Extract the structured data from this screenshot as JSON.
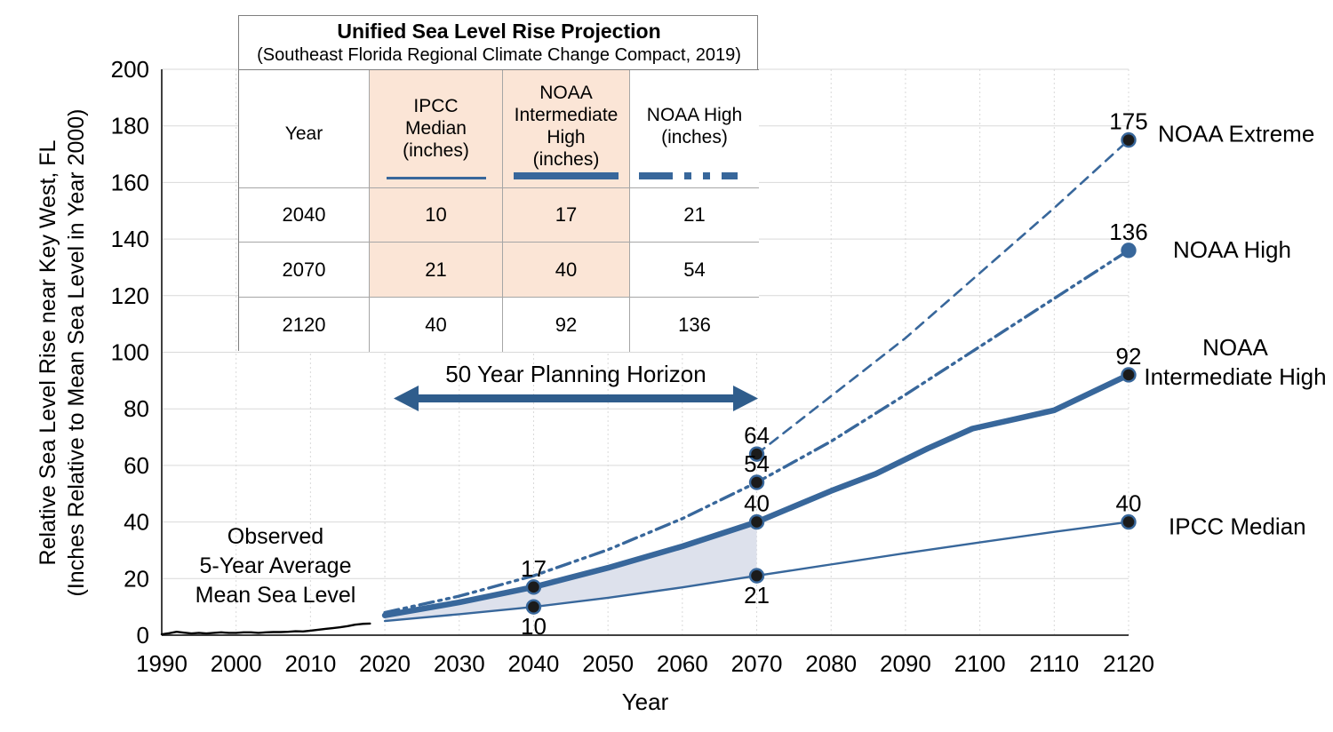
{
  "colors": {
    "line_blue": "#38679B",
    "arrow_blue": "#2F5D8C",
    "band_fill": "#DDE1EC",
    "peach_fill": "#FBE5D6",
    "gridline": "#D9D9D9",
    "axis_line": "#404040",
    "marker_dark": "#1B1B1B",
    "observed_black": "#000000"
  },
  "table": {
    "title": "Unified Sea Level Rise Projection",
    "subtitle": "(Southeast Florida Regional Climate Change Compact, 2019)",
    "headers": {
      "year": "Year",
      "ipcc": "IPCC\nMedian\n(inches)",
      "int_high": "NOAA\nIntermediate\nHigh\n(inches)",
      "high": "NOAA High\n(inches)"
    },
    "rows": [
      [
        "2040",
        "10",
        "17",
        "21"
      ],
      [
        "2070",
        "21",
        "40",
        "54"
      ],
      [
        "2120",
        "40",
        "92",
        "136"
      ]
    ]
  },
  "annotations": {
    "observed": "Observed\n5-Year Average\nMean Sea Level",
    "planning_horizon": "50 Year Planning Horizon"
  },
  "chart_data": {
    "type": "line",
    "xlabel": "Year",
    "ylabel_line1": "Relative Sea Level Rise near Key West, FL",
    "ylabel_line2": "(Inches Relative to Mean Sea Level in Year 2000)",
    "xlim": [
      1990,
      2120
    ],
    "ylim": [
      0,
      200
    ],
    "grid": true,
    "x_ticks": [
      "1990",
      "2000",
      "2010",
      "2020",
      "2030",
      "2040",
      "2050",
      "2060",
      "2070",
      "2080",
      "2090",
      "2100",
      "2110",
      "2120"
    ],
    "y_ticks": [
      "0",
      "20",
      "40",
      "60",
      "80",
      "100",
      "120",
      "140",
      "160",
      "180",
      "200"
    ],
    "band": {
      "upper": "noaa-int-high",
      "lower": "ipcc-median",
      "from": 2020,
      "to": 2070
    },
    "series": [
      {
        "id": "observed",
        "name": "Observed 5-Year Average Mean Sea Level",
        "color": "#000000",
        "width": 2.4,
        "dash": "",
        "points": [
          [
            1990,
            0.3
          ],
          [
            1991,
            0.7
          ],
          [
            1992,
            1.2
          ],
          [
            1993,
            0.9
          ],
          [
            1994,
            0.6
          ],
          [
            1995,
            0.8
          ],
          [
            1996,
            0.6
          ],
          [
            1997,
            0.8
          ],
          [
            1998,
            1.0
          ],
          [
            1999,
            0.8
          ],
          [
            2000,
            0.8
          ],
          [
            2001,
            1.0
          ],
          [
            2002,
            1.0
          ],
          [
            2003,
            0.8
          ],
          [
            2004,
            1.0
          ],
          [
            2005,
            1.1
          ],
          [
            2006,
            1.1
          ],
          [
            2007,
            1.2
          ],
          [
            2008,
            1.4
          ],
          [
            2009,
            1.3
          ],
          [
            2010,
            1.6
          ],
          [
            2011,
            1.9
          ],
          [
            2012,
            2.2
          ],
          [
            2013,
            2.5
          ],
          [
            2014,
            2.8
          ],
          [
            2015,
            3.2
          ],
          [
            2016,
            3.7
          ],
          [
            2017,
            4.0
          ],
          [
            2018,
            4.1
          ]
        ]
      },
      {
        "id": "ipcc-median",
        "name": "IPCC Median",
        "color": "#38679B",
        "width": 2.4,
        "dash": "",
        "points": [
          [
            2020,
            5
          ],
          [
            2030,
            7.4
          ],
          [
            2040,
            10
          ],
          [
            2050,
            13.2
          ],
          [
            2060,
            16.9
          ],
          [
            2070,
            21
          ],
          [
            2080,
            25
          ],
          [
            2090,
            29
          ],
          [
            2100,
            32.8
          ],
          [
            2110,
            36.5
          ],
          [
            2120,
            40
          ]
        ],
        "point_labels": [
          {
            "year": 2040,
            "value": 10,
            "text": "10",
            "pos": "below"
          },
          {
            "year": 2070,
            "value": 21,
            "text": "21",
            "pos": "below"
          },
          {
            "year": 2120,
            "value": 40,
            "text": "40",
            "pos": "above"
          }
        ],
        "end_label": {
          "lines": [
            "IPCC Median"
          ],
          "anchor": "start",
          "dx": 45,
          "dy": 14
        }
      },
      {
        "id": "noaa-int-high",
        "name": "NOAA Intermediate High",
        "color": "#38679B",
        "width": 6.5,
        "dash": "",
        "points": [
          [
            2020,
            7
          ],
          [
            2030,
            11.6
          ],
          [
            2040,
            17
          ],
          [
            2050,
            23.8
          ],
          [
            2060,
            31.4
          ],
          [
            2070,
            40
          ],
          [
            2080,
            51
          ],
          [
            2086,
            57
          ],
          [
            2093,
            66
          ],
          [
            2099,
            73
          ],
          [
            2105,
            76.5
          ],
          [
            2110,
            79.5
          ],
          [
            2120,
            92
          ]
        ],
        "point_labels": [
          {
            "year": 2040,
            "value": 17,
            "text": "17",
            "pos": "above"
          },
          {
            "year": 2070,
            "value": 40,
            "text": "40",
            "pos": "above"
          },
          {
            "year": 2120,
            "value": 92,
            "text": "92",
            "pos": "above"
          }
        ],
        "end_label": {
          "lines": [
            "NOAA",
            "Intermediate High"
          ],
          "anchor": "middle",
          "dx": 120,
          "dys": [
            -22,
            11
          ]
        }
      },
      {
        "id": "noaa-high",
        "name": "NOAA High",
        "color": "#38679B",
        "width": 3.4,
        "dash": "16 6 3 6 3 6",
        "points": [
          [
            2020,
            8
          ],
          [
            2030,
            13.8
          ],
          [
            2040,
            21
          ],
          [
            2050,
            30.2
          ],
          [
            2060,
            41.2
          ],
          [
            2070,
            54
          ],
          [
            2080,
            68.5
          ],
          [
            2090,
            85
          ],
          [
            2100,
            102
          ],
          [
            2110,
            119
          ],
          [
            2120,
            136
          ]
        ],
        "point_labels": [
          {
            "year": 2070,
            "value": 54,
            "text": "54",
            "pos": "above"
          },
          {
            "year": 2120,
            "value": 136,
            "text": "136",
            "pos": "above",
            "marker": "solid"
          }
        ],
        "end_label": {
          "lines": [
            "NOAA High"
          ],
          "anchor": "start",
          "dx": 50,
          "dy": 8
        }
      },
      {
        "id": "noaa-extreme",
        "name": "NOAA Extreme",
        "color": "#38679B",
        "width": 2.6,
        "dash": "11 8",
        "points": [
          [
            2070,
            64
          ],
          [
            2080,
            84.5
          ],
          [
            2090,
            105
          ],
          [
            2100,
            128
          ],
          [
            2110,
            151
          ],
          [
            2120,
            175
          ]
        ],
        "point_labels": [
          {
            "year": 2070,
            "value": 64,
            "text": "64",
            "pos": "above"
          },
          {
            "year": 2120,
            "value": 175,
            "text": "175",
            "pos": "above"
          }
        ],
        "end_label": {
          "lines": [
            "NOAA Extreme"
          ],
          "anchor": "start",
          "dx": 33,
          "dy": 2
        }
      }
    ]
  }
}
